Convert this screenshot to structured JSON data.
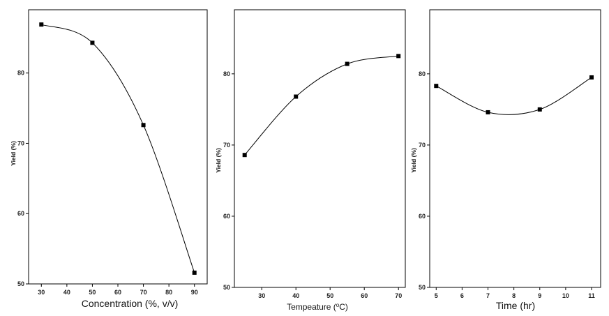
{
  "chart_data": [
    {
      "type": "line",
      "xlabel": "Concentration (%, v/v)",
      "ylabel": "Yield (%)",
      "xlim": [
        25,
        95
      ],
      "ylim": [
        50,
        89
      ],
      "xticks": [
        30,
        40,
        50,
        60,
        70,
        80,
        90
      ],
      "yticks": [
        50,
        60,
        70,
        80
      ],
      "grid": false,
      "series": [
        {
          "x": [
            30,
            50,
            70,
            90
          ],
          "y": [
            86.9,
            84.3,
            72.6,
            51.6
          ]
        }
      ]
    },
    {
      "type": "line",
      "xlabel": "Tempeature (",
      "xlabel_sup": "o",
      "xlabel_suffix": "C)",
      "ylabel": "Yield (%)",
      "xlim": [
        22,
        72
      ],
      "ylim": [
        50,
        89
      ],
      "xticks": [
        30,
        40,
        50,
        60,
        70
      ],
      "yticks": [
        50,
        60,
        70,
        80
      ],
      "grid": false,
      "series": [
        {
          "x": [
            25,
            40,
            55,
            70
          ],
          "y": [
            68.6,
            76.8,
            81.4,
            82.5
          ]
        }
      ]
    },
    {
      "type": "line",
      "xlabel": "Time (hr)",
      "ylabel": "Yield (%)",
      "xlim": [
        4.75,
        11.35
      ],
      "ylim": [
        50,
        89
      ],
      "xticks": [
        5,
        6,
        7,
        8,
        9,
        10,
        11
      ],
      "yticks": [
        50,
        60,
        70,
        80
      ],
      "grid": false,
      "series": [
        {
          "x": [
            5,
            7,
            9,
            11
          ],
          "y": [
            78.3,
            74.6,
            75.0,
            79.5
          ]
        }
      ]
    }
  ]
}
